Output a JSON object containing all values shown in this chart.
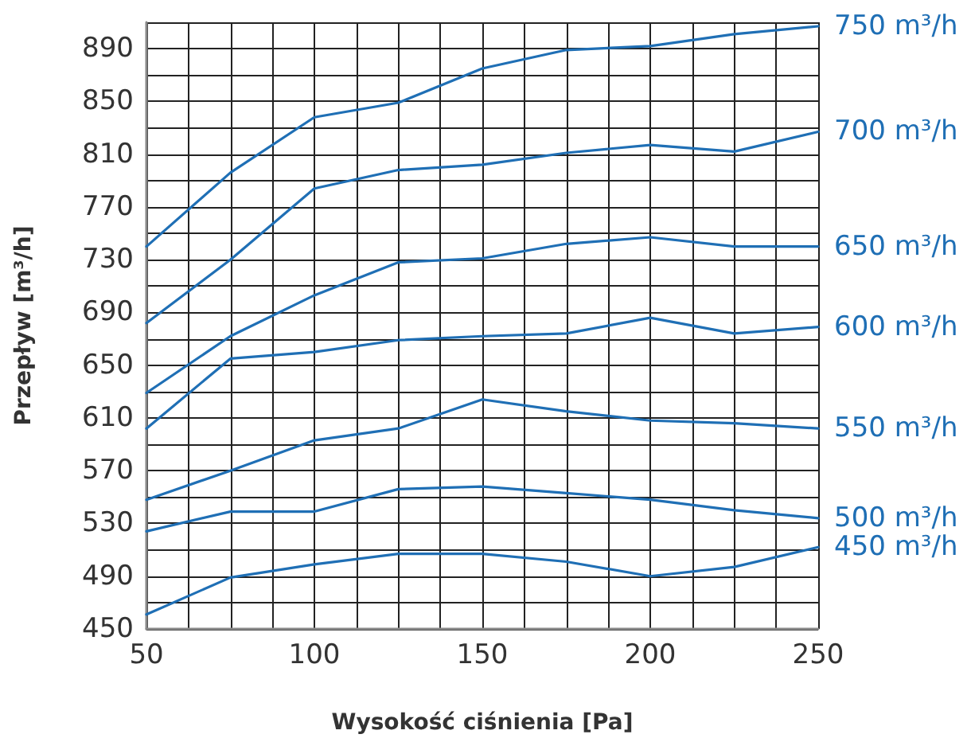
{
  "chart_data": {
    "type": "line",
    "xlabel": "Wysokość ciśnienia [Pa]",
    "ylabel": "Przepływ [m³/h]",
    "x": [
      50,
      75,
      100,
      125,
      150,
      175,
      200,
      225,
      250
    ],
    "xlim": [
      50,
      250
    ],
    "ylim": [
      450,
      910
    ],
    "xticks": [
      50,
      {
        "value": 62.5,
        "label": null
      },
      {
        "value": 75,
        "label": null
      },
      {
        "value": 87.5,
        "label": null
      },
      100,
      {
        "value": 112.5,
        "label": null
      },
      {
        "value": 125,
        "label": null
      },
      {
        "value": 137.5,
        "label": null
      },
      150,
      {
        "value": 162.5,
        "label": null
      },
      {
        "value": 175,
        "label": null
      },
      {
        "value": 187.5,
        "label": null
      },
      200,
      {
        "value": 212.5,
        "label": null
      },
      {
        "value": 225,
        "label": null
      },
      {
        "value": 237.5,
        "label": null
      },
      250
    ],
    "yticks": [
      450,
      {
        "value": 470,
        "label": null
      },
      490,
      {
        "value": 510,
        "label": null
      },
      530,
      {
        "value": 550,
        "label": null
      },
      570,
      {
        "value": 590,
        "label": null
      },
      610,
      {
        "value": 630,
        "label": null
      },
      650,
      {
        "value": 670,
        "label": null
      },
      690,
      {
        "value": 710,
        "label": null
      },
      730,
      {
        "value": 750,
        "label": null
      },
      770,
      {
        "value": 790,
        "label": null
      },
      810,
      {
        "value": 830,
        "label": null
      },
      850,
      {
        "value": 870,
        "label": null
      },
      890,
      {
        "value": 910,
        "label": null
      }
    ],
    "grid": true,
    "legend": false,
    "marker": "none",
    "line_style": "solid",
    "series": [
      {
        "name": "750 m³/h",
        "color": "#1f6fb5",
        "values": [
          740,
          796,
          838,
          849,
          875,
          889,
          892,
          901,
          907
        ]
      },
      {
        "name": "700 m³/h",
        "color": "#1f6fb5",
        "values": [
          682,
          730,
          784,
          798,
          802,
          811,
          817,
          812,
          827
        ]
      },
      {
        "name": "650 m³/h",
        "color": "#1f6fb5",
        "values": [
          629,
          672,
          703,
          728,
          731,
          742,
          747,
          740,
          740
        ]
      },
      {
        "name": "600 m³/h",
        "color": "#1f6fb5",
        "values": [
          602,
          655,
          660,
          669,
          672,
          674,
          686,
          674,
          679
        ]
      },
      {
        "name": "550 m³/h",
        "color": "#1f6fb5",
        "values": [
          548,
          570,
          593,
          602,
          624,
          615,
          608,
          606,
          602
        ]
      },
      {
        "name": "500 m³/h",
        "color": "#1f6fb5",
        "values": [
          524,
          539,
          539,
          556,
          558,
          553,
          548,
          540,
          534
        ]
      },
      {
        "name": "450 m³/h",
        "color": "#1f6fb5",
        "values": [
          461,
          489,
          499,
          507,
          507,
          501,
          490,
          497,
          512
        ]
      }
    ]
  }
}
